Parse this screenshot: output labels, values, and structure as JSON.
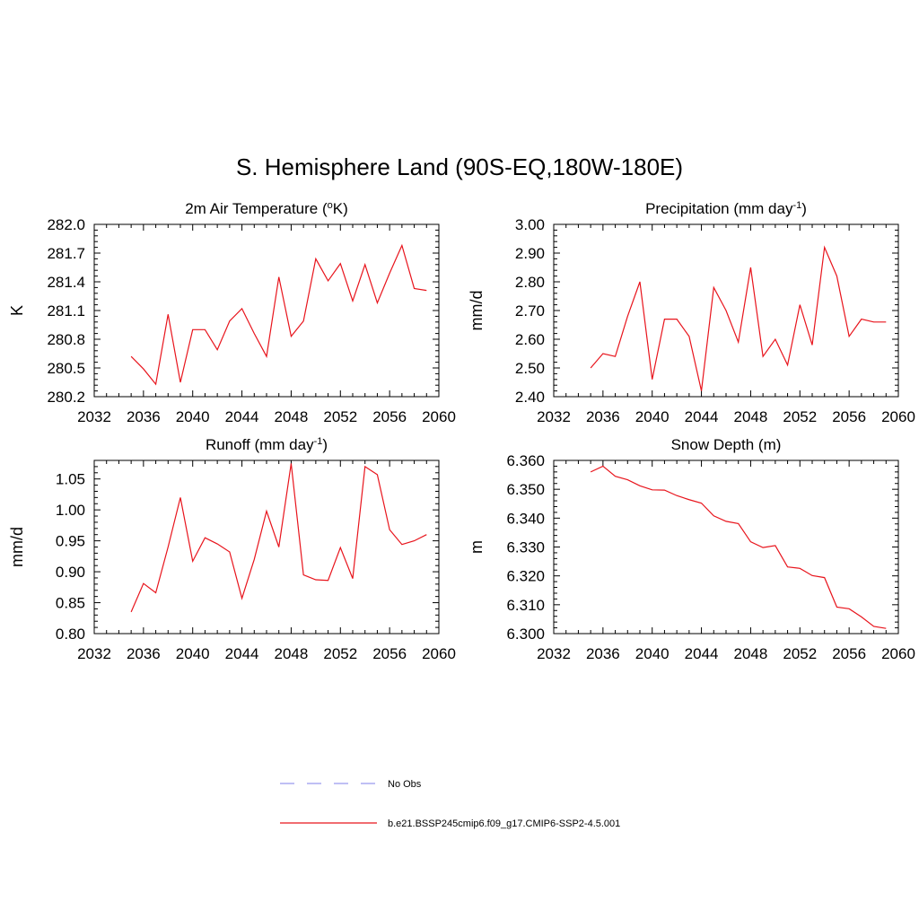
{
  "figure": {
    "title": "S. Hemisphere Land (90S-EQ,180W-180E)"
  },
  "chart_data": [
    {
      "type": "line",
      "title": "2m Air Temperature (",
      "title_sup": "o",
      "title_after": "K)",
      "ylabel": "K",
      "xlim": [
        2032,
        2060
      ],
      "ylim": [
        280.2,
        282.0
      ],
      "x_ticks": [
        "2032",
        "2036",
        "2040",
        "2044",
        "2048",
        "2052",
        "2056",
        "2060"
      ],
      "y_ticks": [
        "280.2",
        "280.5",
        "280.8",
        "281.1",
        "281.4",
        "281.7",
        "282.0"
      ],
      "x": [
        2035,
        2036,
        2037,
        2038,
        2039,
        2040,
        2041,
        2042,
        2043,
        2044,
        2045,
        2046,
        2047,
        2048,
        2049,
        2050,
        2051,
        2052,
        2053,
        2054,
        2055,
        2056,
        2057,
        2058,
        2059
      ],
      "series": [
        {
          "color": "#e8141c",
          "values": [
            280.62,
            280.49,
            280.33,
            281.06,
            280.35,
            280.9,
            280.9,
            280.69,
            280.99,
            281.12,
            280.86,
            280.62,
            281.45,
            280.83,
            280.99,
            281.64,
            281.41,
            281.59,
            281.2,
            281.58,
            281.18,
            281.49,
            281.78,
            281.33,
            281.31
          ]
        }
      ]
    },
    {
      "type": "line",
      "title": "Precipitation (mm day",
      "title_sup": "-1",
      "title_after": ")",
      "ylabel": "mm/d",
      "xlim": [
        2032,
        2060
      ],
      "ylim": [
        2.4,
        3.0
      ],
      "x_ticks": [
        "2032",
        "2036",
        "2040",
        "2044",
        "2048",
        "2052",
        "2056",
        "2060"
      ],
      "y_ticks": [
        "2.40",
        "2.50",
        "2.60",
        "2.70",
        "2.80",
        "2.90",
        "3.00"
      ],
      "x": [
        2035,
        2036,
        2037,
        2038,
        2039,
        2040,
        2041,
        2042,
        2043,
        2044,
        2045,
        2046,
        2047,
        2048,
        2049,
        2050,
        2051,
        2052,
        2053,
        2054,
        2055,
        2056,
        2057,
        2058,
        2059
      ],
      "series": [
        {
          "color": "#e8141c",
          "values": [
            2.5,
            2.55,
            2.54,
            2.68,
            2.8,
            2.46,
            2.67,
            2.67,
            2.61,
            2.42,
            2.78,
            2.7,
            2.59,
            2.85,
            2.54,
            2.6,
            2.51,
            2.72,
            2.58,
            2.92,
            2.82,
            2.61,
            2.67,
            2.66,
            2.66
          ]
        }
      ]
    },
    {
      "type": "line",
      "title": "Runoff (mm day",
      "title_sup": "-1",
      "title_after": ")",
      "ylabel": "mm/d",
      "xlim": [
        2032,
        2060
      ],
      "ylim": [
        0.8,
        1.08
      ],
      "x_ticks": [
        "2032",
        "2036",
        "2040",
        "2044",
        "2048",
        "2052",
        "2056",
        "2060"
      ],
      "y_ticks": [
        "0.80",
        "0.85",
        "0.90",
        "0.95",
        "1.00",
        "1.05"
      ],
      "x": [
        2035,
        2036,
        2037,
        2038,
        2039,
        2040,
        2041,
        2042,
        2043,
        2044,
        2045,
        2046,
        2047,
        2048,
        2049,
        2050,
        2051,
        2052,
        2053,
        2054,
        2055,
        2056,
        2057,
        2058,
        2059
      ],
      "series": [
        {
          "color": "#e8141c",
          "values": [
            0.835,
            0.881,
            0.866,
            0.94,
            1.02,
            0.917,
            0.955,
            0.945,
            0.932,
            0.857,
            0.92,
            0.998,
            0.94,
            1.075,
            0.895,
            0.887,
            0.886,
            0.939,
            0.889,
            1.07,
            1.057,
            0.968,
            0.944,
            0.95,
            0.96
          ]
        }
      ]
    },
    {
      "type": "line",
      "title": "Snow Depth (m)",
      "title_sup": "",
      "title_after": "",
      "ylabel": "m",
      "xlim": [
        2032,
        2060
      ],
      "ylim": [
        6.3,
        6.36
      ],
      "x_ticks": [
        "2032",
        "2036",
        "2040",
        "2044",
        "2048",
        "2052",
        "2056",
        "2060"
      ],
      "y_ticks": [
        "6.300",
        "6.310",
        "6.320",
        "6.330",
        "6.340",
        "6.350",
        "6.360"
      ],
      "x": [
        2035,
        2036,
        2037,
        2038,
        2039,
        2040,
        2041,
        2042,
        2043,
        2044,
        2045,
        2046,
        2047,
        2048,
        2049,
        2050,
        2051,
        2052,
        2053,
        2054,
        2055,
        2056,
        2057,
        2058,
        2059
      ],
      "series": [
        {
          "color": "#e8141c",
          "values": [
            6.356,
            6.358,
            6.3545,
            6.3533,
            6.3512,
            6.3498,
            6.3497,
            6.3478,
            6.3464,
            6.3452,
            6.3408,
            6.3389,
            6.3381,
            6.3318,
            6.3298,
            6.3305,
            6.3231,
            6.3226,
            6.3201,
            6.3194,
            6.3092,
            6.3086,
            6.3058,
            6.3025,
            6.3018
          ]
        }
      ]
    }
  ],
  "legend": [
    {
      "label": "No Obs",
      "color": "#9999ee",
      "dash": true
    },
    {
      "label": "b.e21.BSSP245cmip6.f09_g17.CMIP6-SSP2-4.5.001",
      "color": "#e8141c",
      "dash": false
    }
  ]
}
